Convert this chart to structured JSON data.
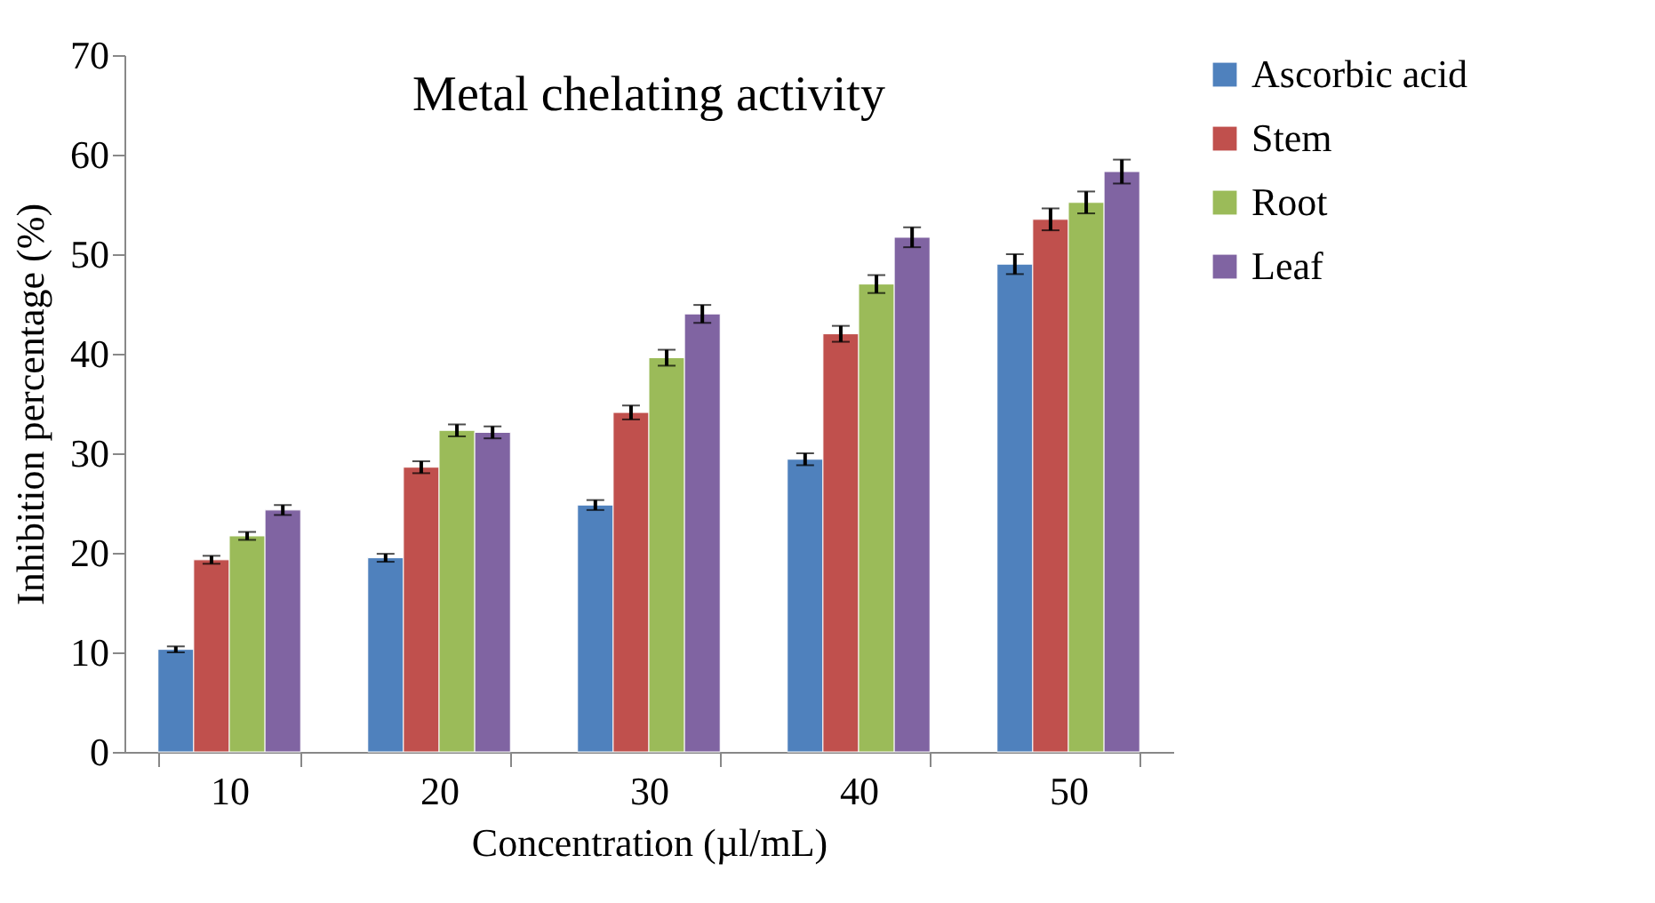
{
  "chart_data": {
    "type": "bar",
    "title": "Metal chelating activity",
    "xlabel": "Concentration (µl/mL)",
    "ylabel": "Inhibition percentage (%)",
    "categories": [
      "10",
      "20",
      "30",
      "40",
      "50"
    ],
    "series": [
      {
        "name": "Ascorbic acid",
        "color": "#4f81bd",
        "values": [
          10.3,
          19.5,
          24.8,
          29.4,
          49.0
        ],
        "errors": [
          0.3,
          0.4,
          0.5,
          0.6,
          1.0
        ]
      },
      {
        "name": "Stem",
        "color": "#c0504d",
        "values": [
          19.3,
          28.6,
          34.1,
          42.0,
          53.5
        ],
        "errors": [
          0.4,
          0.6,
          0.7,
          0.8,
          1.1
        ]
      },
      {
        "name": "Root",
        "color": "#9bbb59",
        "values": [
          21.7,
          32.3,
          39.6,
          47.0,
          55.2
        ],
        "errors": [
          0.4,
          0.6,
          0.8,
          0.9,
          1.1
        ]
      },
      {
        "name": "Leaf",
        "color": "#8064a2",
        "values": [
          24.3,
          32.1,
          44.0,
          51.7,
          58.3
        ],
        "errors": [
          0.5,
          0.6,
          0.9,
          1.0,
          1.2
        ]
      }
    ],
    "ylim": [
      0,
      70
    ],
    "yticks": [
      0,
      10,
      20,
      30,
      40,
      50,
      60,
      70
    ],
    "grid": false,
    "legend": "right"
  }
}
